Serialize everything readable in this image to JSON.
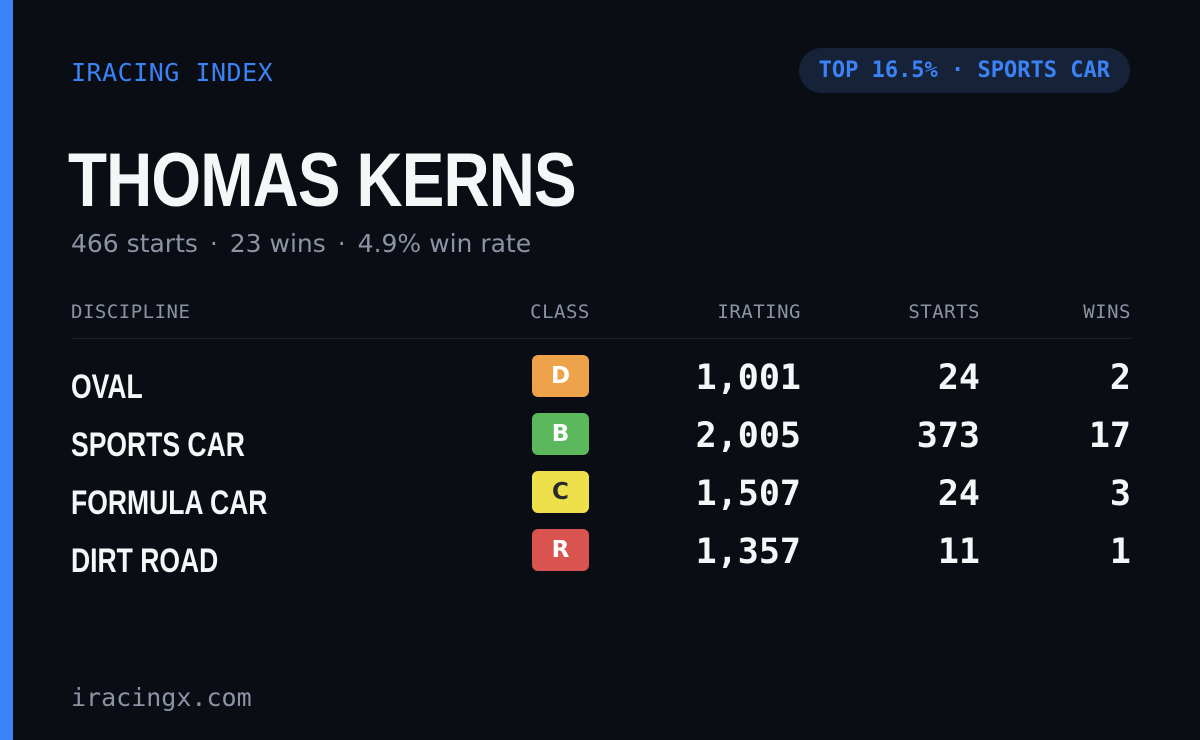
{
  "brand": "IRACING INDEX",
  "rank_badge": "TOP 16.5% · SPORTS CAR",
  "driver": {
    "name": "THOMAS KERNS",
    "starts_text": "466 starts",
    "wins_text": "23 wins",
    "win_rate_text": "4.9% win rate",
    "separator": "·"
  },
  "table": {
    "headers": {
      "discipline": "DISCIPLINE",
      "class": "CLASS",
      "irating": "IRATING",
      "starts": "STARTS",
      "wins": "WINS"
    },
    "rows": [
      {
        "discipline": "OVAL",
        "class": "D",
        "class_color": "#eea34a",
        "class_text_color": "#ffffff",
        "irating": "1,001",
        "starts": "24",
        "wins": "2"
      },
      {
        "discipline": "SPORTS CAR",
        "class": "B",
        "class_color": "#5cb85c",
        "class_text_color": "#ffffff",
        "irating": "2,005",
        "starts": "373",
        "wins": "17"
      },
      {
        "discipline": "FORMULA CAR",
        "class": "C",
        "class_color": "#ede04a",
        "class_text_color": "#2a2a2a",
        "irating": "1,507",
        "starts": "24",
        "wins": "3"
      },
      {
        "discipline": "DIRT ROAD",
        "class": "R",
        "class_color": "#d9534f",
        "class_text_color": "#ffffff",
        "irating": "1,357",
        "starts": "11",
        "wins": "1"
      }
    ]
  },
  "footer_url": "iracingx.com",
  "colors": {
    "accent": "#3b82f6",
    "background": "#0a0d14",
    "muted_text": "#8c93a3"
  }
}
